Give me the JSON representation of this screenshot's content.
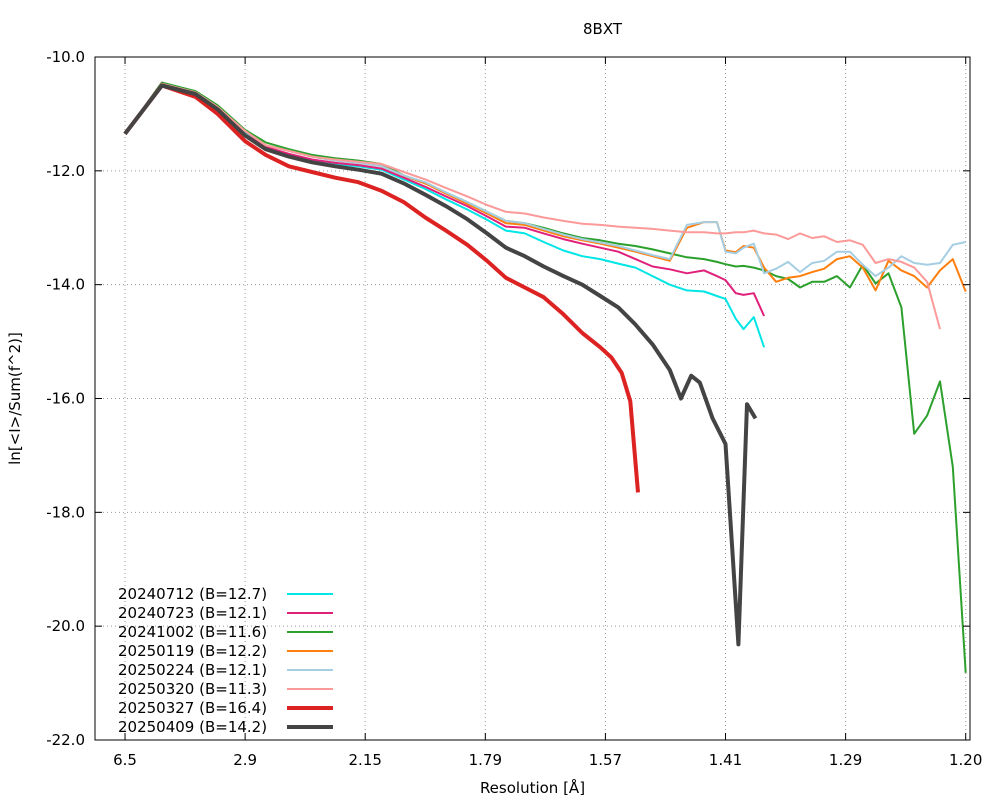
{
  "chart_data": {
    "type": "line",
    "title": "8BXT",
    "xlabel": "Resolution [Å]",
    "ylabel": "ln[<I>/Sum(f^2)]",
    "x_axis_note": "x is the resolution shell index on a 1/d^2-linear axis; tick labels show resolution in Å",
    "xlim": [
      0,
      100
    ],
    "ylim": [
      -22.0,
      -10.0
    ],
    "x_ticks": [
      {
        "x": 3.5,
        "label": "6.5"
      },
      {
        "x": 17.5,
        "label": "2.9"
      },
      {
        "x": 31.5,
        "label": "2.15"
      },
      {
        "x": 45.5,
        "label": "1.79"
      },
      {
        "x": 59.5,
        "label": "1.57"
      },
      {
        "x": 73.5,
        "label": "1.41"
      },
      {
        "x": 87.5,
        "label": "1.29"
      },
      {
        "x": 101.5,
        "label": "1.20"
      }
    ],
    "y_ticks": [
      {
        "y": -10.0,
        "label": "-10.0"
      },
      {
        "y": -12.0,
        "label": "-12.0"
      },
      {
        "y": -14.0,
        "label": "-14.0"
      },
      {
        "y": -16.0,
        "label": "-16.0"
      },
      {
        "y": -18.0,
        "label": "-18.0"
      },
      {
        "y": -20.0,
        "label": "-20.0"
      },
      {
        "y": -22.0,
        "label": "-22.0"
      }
    ],
    "grid": true,
    "legend_position": "bottom-left",
    "series": [
      {
        "name": "20240712 (B=12.7)",
        "color": "#00e5e5",
        "width": 2,
        "x": [
          3.5,
          7.8,
          11.7,
          14.3,
          17.5,
          19.9,
          22.6,
          25.3,
          28.0,
          30.7,
          33.4,
          36.0,
          38.5,
          40.9,
          43.4,
          45.7,
          47.9,
          50.1,
          52.3,
          54.6,
          56.8,
          58.9,
          61.0,
          63.0,
          65.0,
          67.0,
          69.0,
          71.0,
          72.5,
          73.5,
          74.7,
          75.6,
          76.8,
          78.0
        ],
        "y": [
          -11.35,
          -10.47,
          -10.65,
          -10.9,
          -11.32,
          -11.6,
          -11.72,
          -11.82,
          -11.88,
          -11.92,
          -11.98,
          -12.15,
          -12.32,
          -12.5,
          -12.68,
          -12.86,
          -13.05,
          -13.1,
          -13.25,
          -13.4,
          -13.5,
          -13.55,
          -13.63,
          -13.7,
          -13.85,
          -14.0,
          -14.1,
          -14.12,
          -14.2,
          -14.25,
          -14.6,
          -14.78,
          -14.57,
          -15.1
        ]
      },
      {
        "name": "20240723 (B=12.1)",
        "color": "#e0207a",
        "width": 2,
        "x": [
          3.5,
          7.8,
          11.7,
          14.3,
          17.5,
          19.9,
          22.6,
          25.3,
          28.0,
          30.7,
          33.4,
          36.0,
          38.5,
          40.9,
          43.4,
          45.7,
          47.9,
          50.1,
          52.3,
          54.6,
          56.8,
          58.9,
          61.0,
          63.0,
          65.0,
          67.0,
          69.0,
          71.0,
          72.5,
          73.5,
          74.7,
          75.6,
          76.8,
          78.0
        ],
        "y": [
          -11.35,
          -10.45,
          -10.62,
          -10.88,
          -11.3,
          -11.58,
          -11.7,
          -11.8,
          -11.86,
          -11.9,
          -11.96,
          -12.12,
          -12.28,
          -12.45,
          -12.62,
          -12.8,
          -12.98,
          -13.0,
          -13.1,
          -13.2,
          -13.28,
          -13.35,
          -13.42,
          -13.55,
          -13.68,
          -13.73,
          -13.8,
          -13.75,
          -13.85,
          -13.92,
          -14.15,
          -14.18,
          -14.15,
          -14.55
        ]
      },
      {
        "name": "20241002 (B=11.6)",
        "color": "#2ca02c",
        "width": 2,
        "x": [
          3.5,
          7.8,
          11.7,
          14.3,
          17.5,
          19.9,
          22.6,
          25.3,
          28.0,
          30.7,
          33.4,
          36.0,
          38.5,
          40.9,
          43.4,
          45.7,
          47.9,
          50.1,
          52.3,
          54.6,
          56.8,
          58.9,
          61.0,
          63.0,
          65.0,
          67.0,
          69.0,
          71.0,
          72.5,
          73.5,
          74.7,
          75.6,
          76.8,
          78.0,
          79.4,
          80.8,
          82.2,
          83.6,
          85.0,
          86.5,
          88.0,
          89.5,
          91.0,
          92.5,
          94.0,
          95.5,
          97.0,
          98.5,
          100.0,
          101.5
        ],
        "y": [
          -11.35,
          -10.45,
          -10.6,
          -10.85,
          -11.28,
          -11.5,
          -11.62,
          -11.72,
          -11.78,
          -11.82,
          -11.88,
          -12.08,
          -12.22,
          -12.38,
          -12.55,
          -12.72,
          -12.88,
          -12.92,
          -13.0,
          -13.1,
          -13.18,
          -13.22,
          -13.28,
          -13.32,
          -13.38,
          -13.45,
          -13.52,
          -13.55,
          -13.6,
          -13.64,
          -13.68,
          -13.67,
          -13.7,
          -13.75,
          -13.85,
          -13.9,
          -14.05,
          -13.95,
          -13.95,
          -13.85,
          -14.05,
          -13.65,
          -13.98,
          -13.8,
          -14.4,
          -16.62,
          -16.3,
          -15.7,
          -17.2,
          -20.82
        ]
      },
      {
        "name": "20250119 (B=12.2)",
        "color": "#ff7f0e",
        "width": 2,
        "x": [
          3.5,
          7.8,
          11.7,
          14.3,
          17.5,
          19.9,
          22.6,
          25.3,
          28.0,
          30.7,
          33.4,
          36.0,
          38.5,
          40.9,
          43.4,
          45.7,
          47.9,
          50.1,
          52.3,
          54.6,
          56.8,
          58.9,
          61.0,
          63.0,
          65.0,
          67.0,
          69.0,
          71.0,
          72.5,
          73.5,
          74.7,
          75.6,
          76.8,
          78.0,
          79.4,
          80.8,
          82.2,
          83.6,
          85.0,
          86.5,
          88.0,
          89.5,
          91.0,
          92.5,
          94.0,
          95.5,
          97.0,
          98.5,
          100.0,
          101.5
        ],
        "y": [
          -11.35,
          -10.47,
          -10.62,
          -10.88,
          -11.3,
          -11.55,
          -11.65,
          -11.75,
          -11.82,
          -11.86,
          -11.92,
          -12.08,
          -12.22,
          -12.4,
          -12.58,
          -12.75,
          -12.92,
          -12.95,
          -13.05,
          -13.15,
          -13.22,
          -13.28,
          -13.35,
          -13.42,
          -13.5,
          -13.58,
          -13.0,
          -12.9,
          -12.9,
          -13.4,
          -13.43,
          -13.32,
          -13.35,
          -13.7,
          -13.95,
          -13.88,
          -13.85,
          -13.78,
          -13.72,
          -13.55,
          -13.5,
          -13.7,
          -14.1,
          -13.58,
          -13.75,
          -13.85,
          -14.05,
          -13.75,
          -13.55,
          -14.12
        ]
      },
      {
        "name": "20250224 (B=12.1)",
        "color": "#a6cee3",
        "width": 2,
        "x": [
          3.5,
          7.8,
          11.7,
          14.3,
          17.5,
          19.9,
          22.6,
          25.3,
          28.0,
          30.7,
          33.4,
          36.0,
          38.5,
          40.9,
          43.4,
          45.7,
          47.9,
          50.1,
          52.3,
          54.6,
          56.8,
          58.9,
          61.0,
          63.0,
          65.0,
          67.0,
          69.0,
          71.0,
          72.5,
          73.5,
          74.7,
          75.6,
          76.8,
          78.0,
          79.4,
          80.8,
          82.2,
          83.6,
          85.0,
          86.5,
          88.0,
          89.5,
          91.0,
          92.5,
          94.0,
          95.5,
          97.0,
          98.5,
          100.0,
          101.5
        ],
        "y": [
          -11.35,
          -10.47,
          -10.62,
          -10.88,
          -11.3,
          -11.55,
          -11.65,
          -11.75,
          -11.82,
          -11.86,
          -11.92,
          -12.08,
          -12.2,
          -12.38,
          -12.55,
          -12.72,
          -12.88,
          -12.92,
          -13.02,
          -13.12,
          -13.2,
          -13.26,
          -13.32,
          -13.4,
          -13.48,
          -13.55,
          -12.95,
          -12.9,
          -12.9,
          -13.42,
          -13.45,
          -13.35,
          -13.28,
          -13.8,
          -13.72,
          -13.6,
          -13.78,
          -13.62,
          -13.58,
          -13.42,
          -13.42,
          -13.65,
          -13.85,
          -13.7,
          -13.5,
          -13.62,
          -13.65,
          -13.62,
          -13.3,
          -13.25
        ]
      },
      {
        "name": "20250320 (B=11.3)",
        "color": "#fb9a99",
        "width": 2,
        "x": [
          3.5,
          7.8,
          11.7,
          14.3,
          17.5,
          19.9,
          22.6,
          25.3,
          28.0,
          30.7,
          33.4,
          36.0,
          38.5,
          40.9,
          43.4,
          45.7,
          47.9,
          50.1,
          52.3,
          54.6,
          56.8,
          58.9,
          61.0,
          63.0,
          65.0,
          67.0,
          69.0,
          71.0,
          72.5,
          73.5,
          74.7,
          75.6,
          76.8,
          78.0,
          79.4,
          80.8,
          82.2,
          83.6,
          85.0,
          86.5,
          88.0,
          89.5,
          91.0,
          92.5,
          94.0,
          95.5,
          97.0,
          98.5
        ],
        "y": [
          -11.35,
          -10.47,
          -10.62,
          -10.88,
          -11.3,
          -11.55,
          -11.65,
          -11.75,
          -11.8,
          -11.84,
          -11.88,
          -12.02,
          -12.15,
          -12.3,
          -12.45,
          -12.6,
          -12.72,
          -12.75,
          -12.82,
          -12.88,
          -12.93,
          -12.95,
          -12.98,
          -13.0,
          -13.02,
          -13.05,
          -13.08,
          -13.08,
          -13.1,
          -13.1,
          -13.08,
          -13.08,
          -13.05,
          -13.1,
          -13.12,
          -13.2,
          -13.1,
          -13.18,
          -13.15,
          -13.25,
          -13.22,
          -13.3,
          -13.62,
          -13.55,
          -13.6,
          -13.7,
          -13.95,
          -14.78
        ]
      },
      {
        "name": "20250327 (B=16.4)",
        "color": "#dd2222",
        "width": 4,
        "x": [
          3.5,
          7.8,
          11.7,
          14.3,
          17.5,
          19.9,
          22.6,
          25.3,
          28.0,
          30.7,
          33.4,
          36.0,
          38.5,
          40.9,
          43.4,
          45.7,
          47.9,
          50.1,
          52.3,
          54.6,
          56.8,
          58.9,
          60.2,
          61.4,
          62.4,
          63.3
        ],
        "y": [
          -11.35,
          -10.5,
          -10.7,
          -11.0,
          -11.48,
          -11.72,
          -11.92,
          -12.02,
          -12.12,
          -12.2,
          -12.35,
          -12.55,
          -12.82,
          -13.05,
          -13.3,
          -13.58,
          -13.88,
          -14.05,
          -14.22,
          -14.52,
          -14.85,
          -15.1,
          -15.28,
          -15.55,
          -16.05,
          -17.65
        ]
      },
      {
        "name": "20250409 (B=14.2)",
        "color": "#444444",
        "width": 4,
        "x": [
          3.5,
          7.8,
          11.7,
          14.3,
          17.5,
          19.9,
          22.6,
          25.3,
          28.0,
          30.7,
          33.4,
          36.0,
          38.5,
          40.9,
          43.4,
          45.7,
          47.9,
          50.1,
          52.3,
          54.6,
          56.8,
          58.9,
          61.0,
          63.0,
          65.0,
          67.0,
          68.3,
          69.5,
          70.5,
          72.0,
          73.5,
          75.0,
          76.0,
          77.0
        ],
        "y": [
          -11.35,
          -10.5,
          -10.65,
          -10.92,
          -11.38,
          -11.62,
          -11.75,
          -11.85,
          -11.92,
          -11.98,
          -12.05,
          -12.22,
          -12.42,
          -12.62,
          -12.85,
          -13.1,
          -13.35,
          -13.5,
          -13.68,
          -13.85,
          -14.0,
          -14.2,
          -14.4,
          -14.7,
          -15.05,
          -15.5,
          -16.0,
          -15.6,
          -15.72,
          -16.35,
          -16.8,
          -20.32,
          -16.1,
          -16.35
        ]
      }
    ]
  }
}
